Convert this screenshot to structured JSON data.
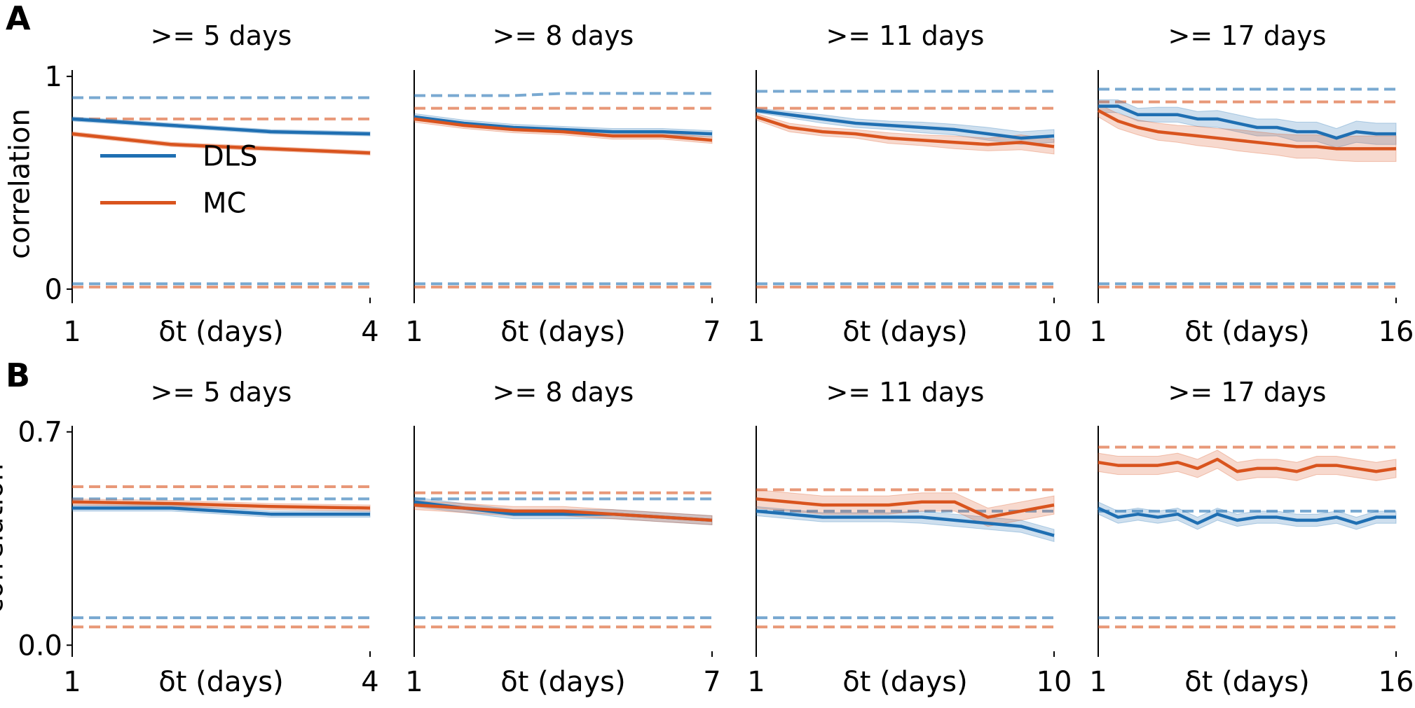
{
  "panel_labels": [
    "A",
    "B"
  ],
  "chart_data": [
    {
      "type": "line",
      "title": ">= 5 days",
      "xlabel": "δt (days)",
      "ylabel": "correlation",
      "legend": "center left",
      "x": [
        1,
        2,
        3,
        4
      ],
      "xlim": [
        1,
        4
      ],
      "xticks": [
        1,
        4
      ],
      "ylim": [
        -0.04,
        1.03
      ],
      "yticks": [
        0,
        1
      ],
      "series": [
        {
          "name": "DLS",
          "color": "#1f6fb2",
          "values": [
            0.8,
            0.77,
            0.74,
            0.73
          ],
          "error": [
            0.01,
            0.01,
            0.01,
            0.01
          ],
          "ceiling": [
            0.9,
            0.9,
            0.9,
            0.9
          ],
          "floor": 0.025
        },
        {
          "name": "MC",
          "color": "#d9541e",
          "values": [
            0.73,
            0.68,
            0.66,
            0.64
          ],
          "error": [
            0.01,
            0.01,
            0.01,
            0.01
          ],
          "ceiling": [
            0.8,
            0.8,
            0.8,
            0.8
          ],
          "floor": 0.01
        }
      ]
    },
    {
      "type": "line",
      "title": ">= 8 days",
      "xlabel": "δt (days)",
      "x": [
        1,
        2,
        3,
        4,
        5,
        6,
        7
      ],
      "xlim": [
        1,
        7
      ],
      "xticks": [
        1,
        7
      ],
      "ylim": [
        -0.04,
        1.03
      ],
      "series": [
        {
          "name": "DLS",
          "color": "#1f6fb2",
          "values": [
            0.81,
            0.78,
            0.76,
            0.75,
            0.74,
            0.74,
            0.73
          ],
          "error": [
            0.015,
            0.015,
            0.015,
            0.015,
            0.015,
            0.015,
            0.015
          ],
          "ceiling": [
            0.91,
            0.91,
            0.91,
            0.92,
            0.92,
            0.92,
            0.92
          ],
          "floor": 0.025
        },
        {
          "name": "MC",
          "color": "#d9541e",
          "values": [
            0.8,
            0.77,
            0.75,
            0.74,
            0.72,
            0.72,
            0.7
          ],
          "error": [
            0.015,
            0.015,
            0.015,
            0.015,
            0.015,
            0.015,
            0.015
          ],
          "ceiling": [
            0.85,
            0.85,
            0.85,
            0.85,
            0.85,
            0.85,
            0.85
          ],
          "floor": 0.01
        }
      ]
    },
    {
      "type": "line",
      "title": ">= 11 days",
      "xlabel": "δt (days)",
      "x": [
        1,
        2,
        3,
        4,
        5,
        6,
        7,
        8,
        9,
        10
      ],
      "xlim": [
        1,
        10
      ],
      "xticks": [
        1,
        10
      ],
      "ylim": [
        -0.04,
        1.03
      ],
      "series": [
        {
          "name": "DLS",
          "color": "#1f6fb2",
          "values": [
            0.84,
            0.82,
            0.8,
            0.78,
            0.77,
            0.76,
            0.75,
            0.73,
            0.71,
            0.72
          ],
          "error": [
            0.01,
            0.015,
            0.02,
            0.02,
            0.02,
            0.025,
            0.025,
            0.03,
            0.03,
            0.03
          ],
          "ceiling": [
            0.93,
            0.93,
            0.93,
            0.93,
            0.93,
            0.93,
            0.93,
            0.93,
            0.93,
            0.93
          ],
          "floor": 0.025
        },
        {
          "name": "MC",
          "color": "#d9541e",
          "values": [
            0.81,
            0.76,
            0.74,
            0.73,
            0.71,
            0.7,
            0.69,
            0.68,
            0.69,
            0.67
          ],
          "error": [
            0.015,
            0.02,
            0.02,
            0.02,
            0.025,
            0.025,
            0.03,
            0.03,
            0.035,
            0.035
          ],
          "ceiling": [
            0.85,
            0.85,
            0.85,
            0.85,
            0.85,
            0.85,
            0.85,
            0.85,
            0.85,
            0.85
          ],
          "floor": 0.01
        }
      ]
    },
    {
      "type": "line",
      "title": ">= 17 days",
      "xlabel": "δt (days)",
      "x": [
        1,
        2,
        3,
        4,
        5,
        6,
        7,
        8,
        9,
        10,
        11,
        12,
        13,
        14,
        15,
        16
      ],
      "xlim": [
        1,
        16
      ],
      "xticks": [
        1,
        16
      ],
      "ylim": [
        -0.04,
        1.03
      ],
      "series": [
        {
          "name": "DLS",
          "color": "#1f6fb2",
          "values": [
            0.86,
            0.86,
            0.82,
            0.82,
            0.82,
            0.8,
            0.8,
            0.78,
            0.76,
            0.76,
            0.74,
            0.74,
            0.71,
            0.74,
            0.73,
            0.73
          ],
          "error": [
            0.03,
            0.03,
            0.03,
            0.035,
            0.035,
            0.035,
            0.04,
            0.04,
            0.04,
            0.04,
            0.045,
            0.045,
            0.045,
            0.05,
            0.05,
            0.05
          ],
          "ceiling": [
            0.94,
            0.94,
            0.94,
            0.94,
            0.94,
            0.94,
            0.94,
            0.94,
            0.94,
            0.94,
            0.94,
            0.94,
            0.94,
            0.94,
            0.94,
            0.94
          ],
          "floor": 0.025
        },
        {
          "name": "MC",
          "color": "#d9541e",
          "values": [
            0.84,
            0.79,
            0.76,
            0.74,
            0.73,
            0.72,
            0.71,
            0.7,
            0.69,
            0.68,
            0.67,
            0.67,
            0.66,
            0.66,
            0.66,
            0.66
          ],
          "error": [
            0.03,
            0.035,
            0.035,
            0.04,
            0.04,
            0.045,
            0.045,
            0.05,
            0.05,
            0.05,
            0.055,
            0.055,
            0.055,
            0.06,
            0.06,
            0.06
          ],
          "ceiling": [
            0.88,
            0.88,
            0.88,
            0.88,
            0.88,
            0.88,
            0.88,
            0.88,
            0.88,
            0.88,
            0.88,
            0.88,
            0.88,
            0.88,
            0.88,
            0.88
          ],
          "floor": 0.01
        }
      ]
    },
    {
      "type": "line",
      "title": ">= 5 days",
      "xlabel": "δt (days)",
      "ylabel": "correlation",
      "x": [
        1,
        2,
        3,
        4
      ],
      "xlim": [
        1,
        4
      ],
      "xticks": [
        1,
        4
      ],
      "ylim": [
        -0.02,
        0.72
      ],
      "yticks": [
        {
          "value": 0,
          "label": "0.0"
        },
        0.7
      ],
      "series": [
        {
          "name": "DLS",
          "color": "#1f6fb2",
          "values": [
            0.45,
            0.45,
            0.43,
            0.43
          ],
          "error": [
            0.01,
            0.01,
            0.01,
            0.01
          ],
          "ceiling": [
            0.48,
            0.48,
            0.48,
            0.48
          ],
          "floor": 0.09
        },
        {
          "name": "MC",
          "color": "#d9541e",
          "values": [
            0.47,
            0.465,
            0.455,
            0.45
          ],
          "error": [
            0.01,
            0.01,
            0.01,
            0.01
          ],
          "ceiling": [
            0.52,
            0.52,
            0.52,
            0.52
          ],
          "floor": 0.06
        }
      ]
    },
    {
      "type": "line",
      "title": ">= 8 days",
      "xlabel": "δt (days)",
      "x": [
        1,
        2,
        3,
        4,
        5,
        6,
        7
      ],
      "xlim": [
        1,
        7
      ],
      "xticks": [
        1,
        7
      ],
      "ylim": [
        -0.02,
        0.72
      ],
      "series": [
        {
          "name": "DLS",
          "color": "#1f6fb2",
          "values": [
            0.47,
            0.45,
            0.43,
            0.43,
            0.43,
            0.42,
            0.41
          ],
          "error": [
            0.015,
            0.015,
            0.015,
            0.015,
            0.015,
            0.015,
            0.015
          ],
          "ceiling": [
            0.48,
            0.48,
            0.48,
            0.48,
            0.48,
            0.48,
            0.48
          ],
          "floor": 0.09
        },
        {
          "name": "MC",
          "color": "#d9541e",
          "values": [
            0.46,
            0.45,
            0.44,
            0.44,
            0.43,
            0.42,
            0.41
          ],
          "error": [
            0.015,
            0.015,
            0.015,
            0.015,
            0.015,
            0.015,
            0.015
          ],
          "ceiling": [
            0.5,
            0.5,
            0.5,
            0.5,
            0.5,
            0.5,
            0.5
          ],
          "floor": 0.06
        }
      ]
    },
    {
      "type": "line",
      "title": ">= 11 days",
      "xlabel": "δt (days)",
      "x": [
        1,
        2,
        3,
        4,
        5,
        6,
        7,
        8,
        9,
        10
      ],
      "xlim": [
        1,
        10
      ],
      "xticks": [
        1,
        10
      ],
      "ylim": [
        -0.02,
        0.72
      ],
      "series": [
        {
          "name": "DLS",
          "color": "#1f6fb2",
          "values": [
            0.44,
            0.43,
            0.42,
            0.42,
            0.42,
            0.42,
            0.41,
            0.4,
            0.39,
            0.36
          ],
          "error": [
            0.015,
            0.015,
            0.015,
            0.015,
            0.015,
            0.02,
            0.02,
            0.02,
            0.02,
            0.02
          ],
          "ceiling": [
            0.44,
            0.44,
            0.44,
            0.44,
            0.44,
            0.44,
            0.44,
            0.44,
            0.44,
            0.44
          ],
          "floor": 0.09
        },
        {
          "name": "MC",
          "color": "#d9541e",
          "values": [
            0.48,
            0.47,
            0.46,
            0.46,
            0.46,
            0.47,
            0.47,
            0.42,
            0.44,
            0.46
          ],
          "error": [
            0.03,
            0.03,
            0.03,
            0.03,
            0.03,
            0.03,
            0.03,
            0.03,
            0.03,
            0.03
          ],
          "ceiling": [
            0.51,
            0.51,
            0.51,
            0.51,
            0.51,
            0.51,
            0.51,
            0.51,
            0.51,
            0.51
          ],
          "floor": 0.06
        }
      ]
    },
    {
      "type": "line",
      "title": ">= 17 days",
      "xlabel": "δt (days)",
      "x": [
        1,
        2,
        3,
        4,
        5,
        6,
        7,
        8,
        9,
        10,
        11,
        12,
        13,
        14,
        15,
        16
      ],
      "xlim": [
        1,
        16
      ],
      "xticks": [
        1,
        16
      ],
      "ylim": [
        -0.02,
        0.72
      ],
      "series": [
        {
          "name": "DLS",
          "color": "#1f6fb2",
          "values": [
            0.45,
            0.42,
            0.43,
            0.42,
            0.43,
            0.4,
            0.43,
            0.41,
            0.42,
            0.42,
            0.41,
            0.41,
            0.42,
            0.4,
            0.42,
            0.42
          ],
          "error": [
            0.02,
            0.02,
            0.02,
            0.02,
            0.02,
            0.02,
            0.02,
            0.02,
            0.02,
            0.02,
            0.02,
            0.02,
            0.02,
            0.02,
            0.02,
            0.02
          ],
          "ceiling": [
            0.44,
            0.44,
            0.44,
            0.44,
            0.44,
            0.44,
            0.44,
            0.44,
            0.44,
            0.44,
            0.44,
            0.44,
            0.44,
            0.44,
            0.44,
            0.44
          ],
          "floor": 0.09
        },
        {
          "name": "MC",
          "color": "#d9541e",
          "values": [
            0.6,
            0.59,
            0.59,
            0.59,
            0.6,
            0.58,
            0.61,
            0.57,
            0.58,
            0.58,
            0.57,
            0.59,
            0.59,
            0.58,
            0.57,
            0.58
          ],
          "error": [
            0.03,
            0.03,
            0.03,
            0.03,
            0.03,
            0.03,
            0.03,
            0.03,
            0.03,
            0.03,
            0.03,
            0.03,
            0.03,
            0.03,
            0.03,
            0.03
          ],
          "ceiling": [
            0.65,
            0.65,
            0.65,
            0.65,
            0.65,
            0.65,
            0.65,
            0.65,
            0.65,
            0.65,
            0.65,
            0.65,
            0.65,
            0.65,
            0.65,
            0.65
          ],
          "floor": 0.06
        }
      ]
    }
  ]
}
